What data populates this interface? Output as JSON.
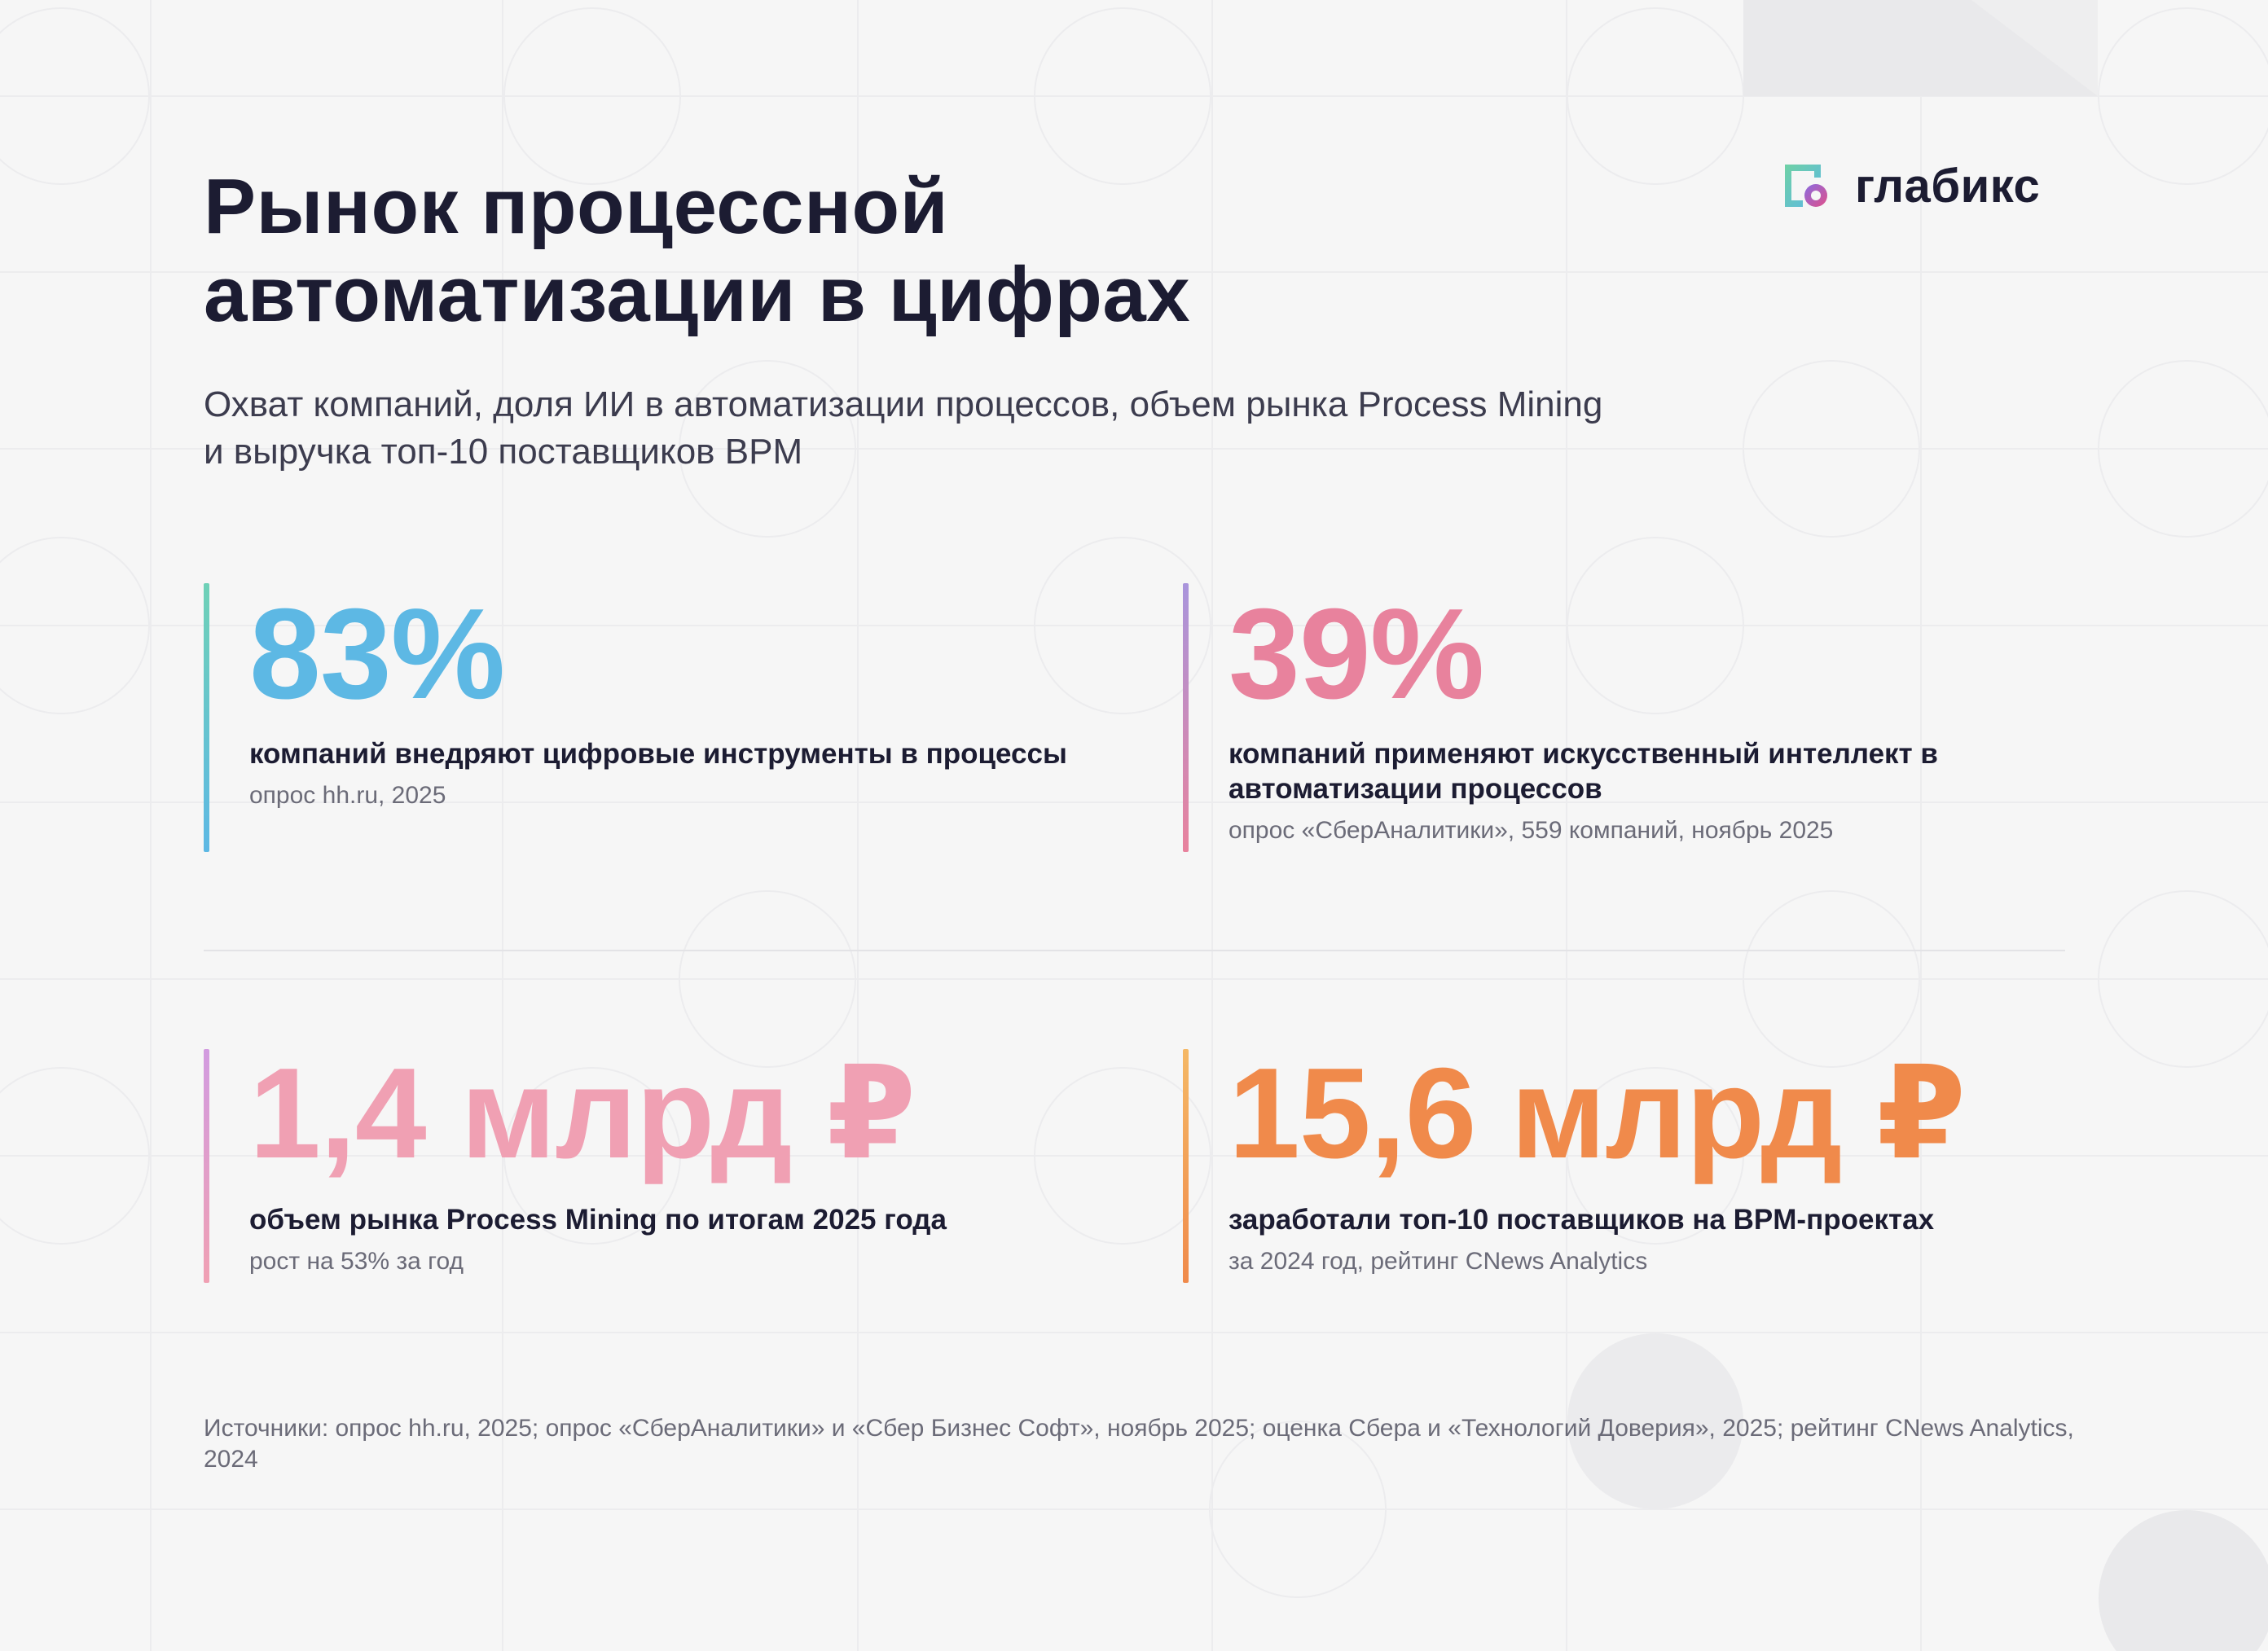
{
  "header": {
    "title_line1": "Рынок процессной",
    "title_line2": "автоматизации в цифрах",
    "subtitle": "Охват компаний, доля ИИ в автоматизации процессов, объем рынка Process Mining и выручка топ-10 поставщиков BPM"
  },
  "logo": {
    "text": "глабикс",
    "icon": "glabix-logo-icon"
  },
  "stats": [
    {
      "value": "83%",
      "label": "компаний внедряют цифровые инструменты в процессы",
      "note": "опрос hh.ru, 2025",
      "color": "#5db8e4"
    },
    {
      "value": "39%",
      "label": "компаний применяют искусственный интеллект в автоматизации процессов",
      "note": "опрос «СберАналитики», 559 компаний, ноябрь 2025",
      "color": "#e8829d"
    },
    {
      "value": "1,4 млрд ₽",
      "label": "объем рынка Process Mining по итогам 2025 года",
      "note": "рост на 53% за год",
      "color": "#f0a0b3"
    },
    {
      "value": "15,6 млрд ₽",
      "label": "заработали топ-10 поставщиков на BPM-проектах",
      "note": "за 2024 год, рейтинг CNews Analytics",
      "color": "#f08a4b"
    }
  ],
  "footer": {
    "sources": "Источники: опрос hh.ru, 2025; опрос «СберАналитики» и «Сбер Бизнес Софт», ноябрь 2025; оценка Сбера и «Технологий Доверия», 2025; рейтинг CNews Analytics, 2024"
  },
  "colors": {
    "background": "#f6f6f6",
    "text": "#1c1c32",
    "muted": "#6b6b78"
  }
}
